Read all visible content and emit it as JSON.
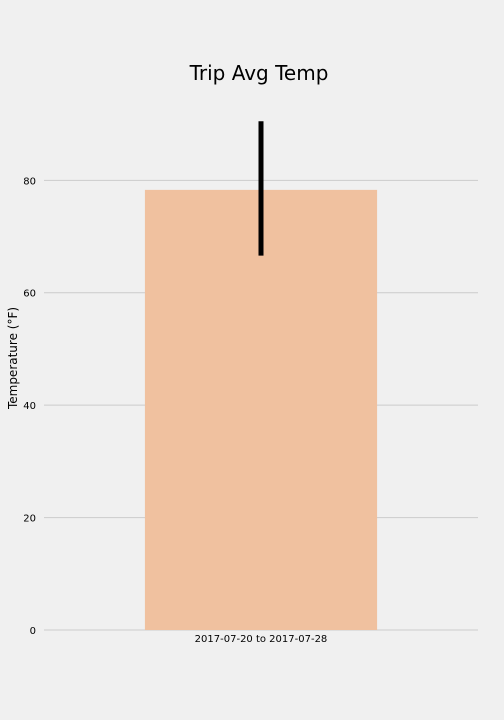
{
  "chart_data": {
    "type": "bar",
    "title": "Trip Avg Temp",
    "xlabel": "",
    "ylabel": "Temperature (°F)",
    "categories": [
      "2017-07-20 to 2017-07-28"
    ],
    "values": [
      78.3
    ],
    "error_range": [
      [
        66.6,
        90.5
      ]
    ],
    "ylim": [
      0,
      95
    ],
    "yticks": [
      0,
      20,
      40,
      60,
      80
    ],
    "grid": true,
    "legend": "none",
    "colors": {
      "bar": "#f0c19f",
      "error_bar": "#000000",
      "grid": "#cbcbcb",
      "background": "#f0f0f0"
    }
  }
}
